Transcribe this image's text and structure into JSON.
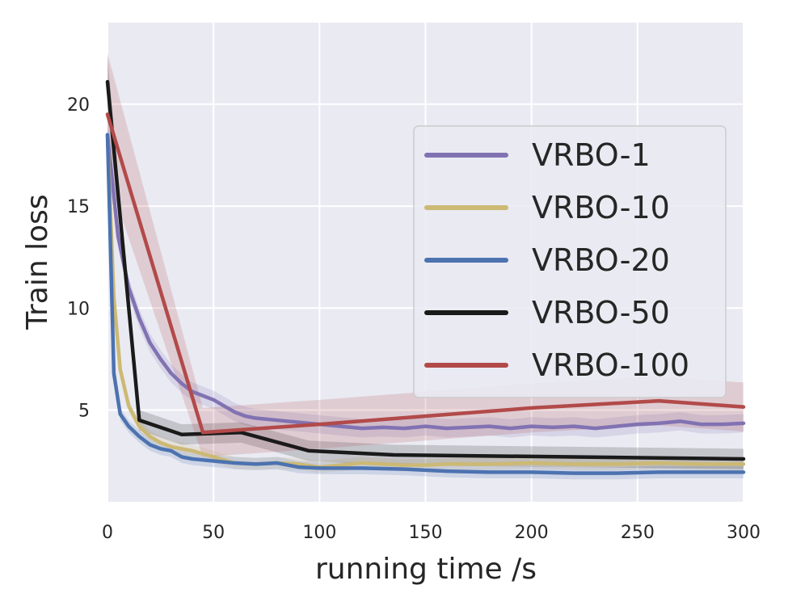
{
  "chart_data": {
    "type": "line",
    "title": "",
    "xlabel": "running time /s",
    "ylabel": "Train loss",
    "xlim": [
      0,
      300
    ],
    "ylim": [
      0.5,
      24.0
    ],
    "xticks": [
      0,
      50,
      100,
      150,
      200,
      250,
      300
    ],
    "yticks": [
      5,
      10,
      15,
      20
    ],
    "grid": true,
    "legend_position": "right",
    "background": "#eaeaf2",
    "series": [
      {
        "name": "VRBO-1",
        "color": "#8172b2",
        "x": [
          0,
          5,
          10,
          15,
          20,
          25,
          30,
          35,
          40,
          45,
          50,
          55,
          60,
          65,
          70,
          80,
          90,
          100,
          110,
          120,
          130,
          140,
          150,
          160,
          170,
          180,
          190,
          200,
          210,
          220,
          230,
          240,
          250,
          260,
          270,
          280,
          290,
          300
        ],
        "y": [
          18.5,
          13.5,
          11.0,
          9.5,
          8.3,
          7.5,
          6.8,
          6.3,
          5.9,
          5.7,
          5.5,
          5.2,
          4.9,
          4.7,
          4.6,
          4.5,
          4.4,
          4.3,
          4.2,
          4.1,
          4.15,
          4.1,
          4.2,
          4.1,
          4.15,
          4.2,
          4.1,
          4.2,
          4.15,
          4.2,
          4.1,
          4.2,
          4.3,
          4.35,
          4.45,
          4.3,
          4.3,
          4.35
        ],
        "band": 0.45
      },
      {
        "name": "VRBO-10",
        "color": "#ccb974",
        "x": [
          0,
          3,
          6,
          10,
          15,
          20,
          25,
          30,
          40,
          50,
          60,
          70,
          80,
          90,
          100,
          110,
          120,
          130,
          140,
          150,
          160,
          180,
          200,
          220,
          240,
          260,
          280,
          300
        ],
        "y": [
          18.5,
          10.5,
          7.0,
          5.2,
          4.2,
          3.7,
          3.4,
          3.2,
          3.0,
          2.7,
          2.4,
          2.35,
          2.4,
          2.35,
          2.2,
          2.3,
          2.4,
          2.35,
          2.3,
          2.3,
          2.35,
          2.35,
          2.4,
          2.35,
          2.35,
          2.4,
          2.35,
          2.35
        ],
        "band": 0.3
      },
      {
        "name": "VRBO-20",
        "color": "#4c72b0",
        "x": [
          0,
          3,
          6,
          10,
          15,
          20,
          25,
          30,
          35,
          40,
          50,
          60,
          70,
          80,
          90,
          100,
          120,
          140,
          160,
          180,
          200,
          220,
          240,
          260,
          280,
          300
        ],
        "y": [
          18.5,
          6.8,
          4.8,
          4.2,
          3.7,
          3.3,
          3.1,
          3.0,
          2.7,
          2.6,
          2.5,
          2.4,
          2.35,
          2.4,
          2.2,
          2.15,
          2.15,
          2.1,
          2.0,
          1.95,
          1.95,
          1.9,
          1.9,
          1.95,
          1.95,
          1.95
        ],
        "band": 0.3
      },
      {
        "name": "VRBO-50",
        "color": "#1a1a1a",
        "x": [
          0,
          15,
          35,
          63,
          95,
          135,
          300
        ],
        "y": [
          21.1,
          4.5,
          3.8,
          3.9,
          3.0,
          2.8,
          2.6
        ],
        "band": 0.5
      },
      {
        "name": "VRBO-100",
        "color": "#b24a4a",
        "x": [
          0,
          45,
          100,
          150,
          200,
          260,
          300
        ],
        "y": [
          19.5,
          3.9,
          4.3,
          4.7,
          5.1,
          5.45,
          5.15
        ],
        "band": 1.2
      }
    ]
  }
}
